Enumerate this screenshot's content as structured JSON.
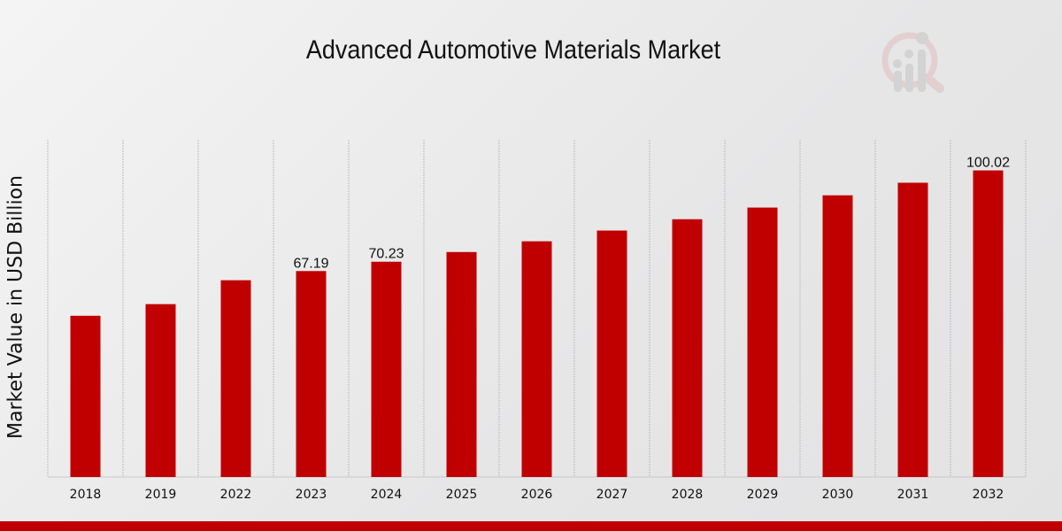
{
  "chart_data": {
    "type": "bar",
    "title": "Advanced Automotive Materials Market",
    "xlabel": "",
    "ylabel": "Market Value in USD Billion",
    "categories": [
      "2018",
      "2019",
      "2022",
      "2023",
      "2024",
      "2025",
      "2026",
      "2027",
      "2028",
      "2029",
      "2030",
      "2031",
      "2032"
    ],
    "values": [
      52.6,
      56.4,
      64.2,
      67.19,
      70.23,
      73.4,
      76.9,
      80.4,
      84.1,
      87.9,
      91.9,
      96.0,
      100.02
    ],
    "data_labels": {
      "2023": "67.19",
      "2024": "70.23",
      "2032": "100.02"
    },
    "ylim": [
      0,
      110
    ],
    "grid": "vertical dashed",
    "bar_color": "#c00000",
    "legend": "none"
  },
  "colors": {
    "accent": "#c00000"
  },
  "logo": {
    "icon": "magnifier-bar-chart-logo"
  }
}
